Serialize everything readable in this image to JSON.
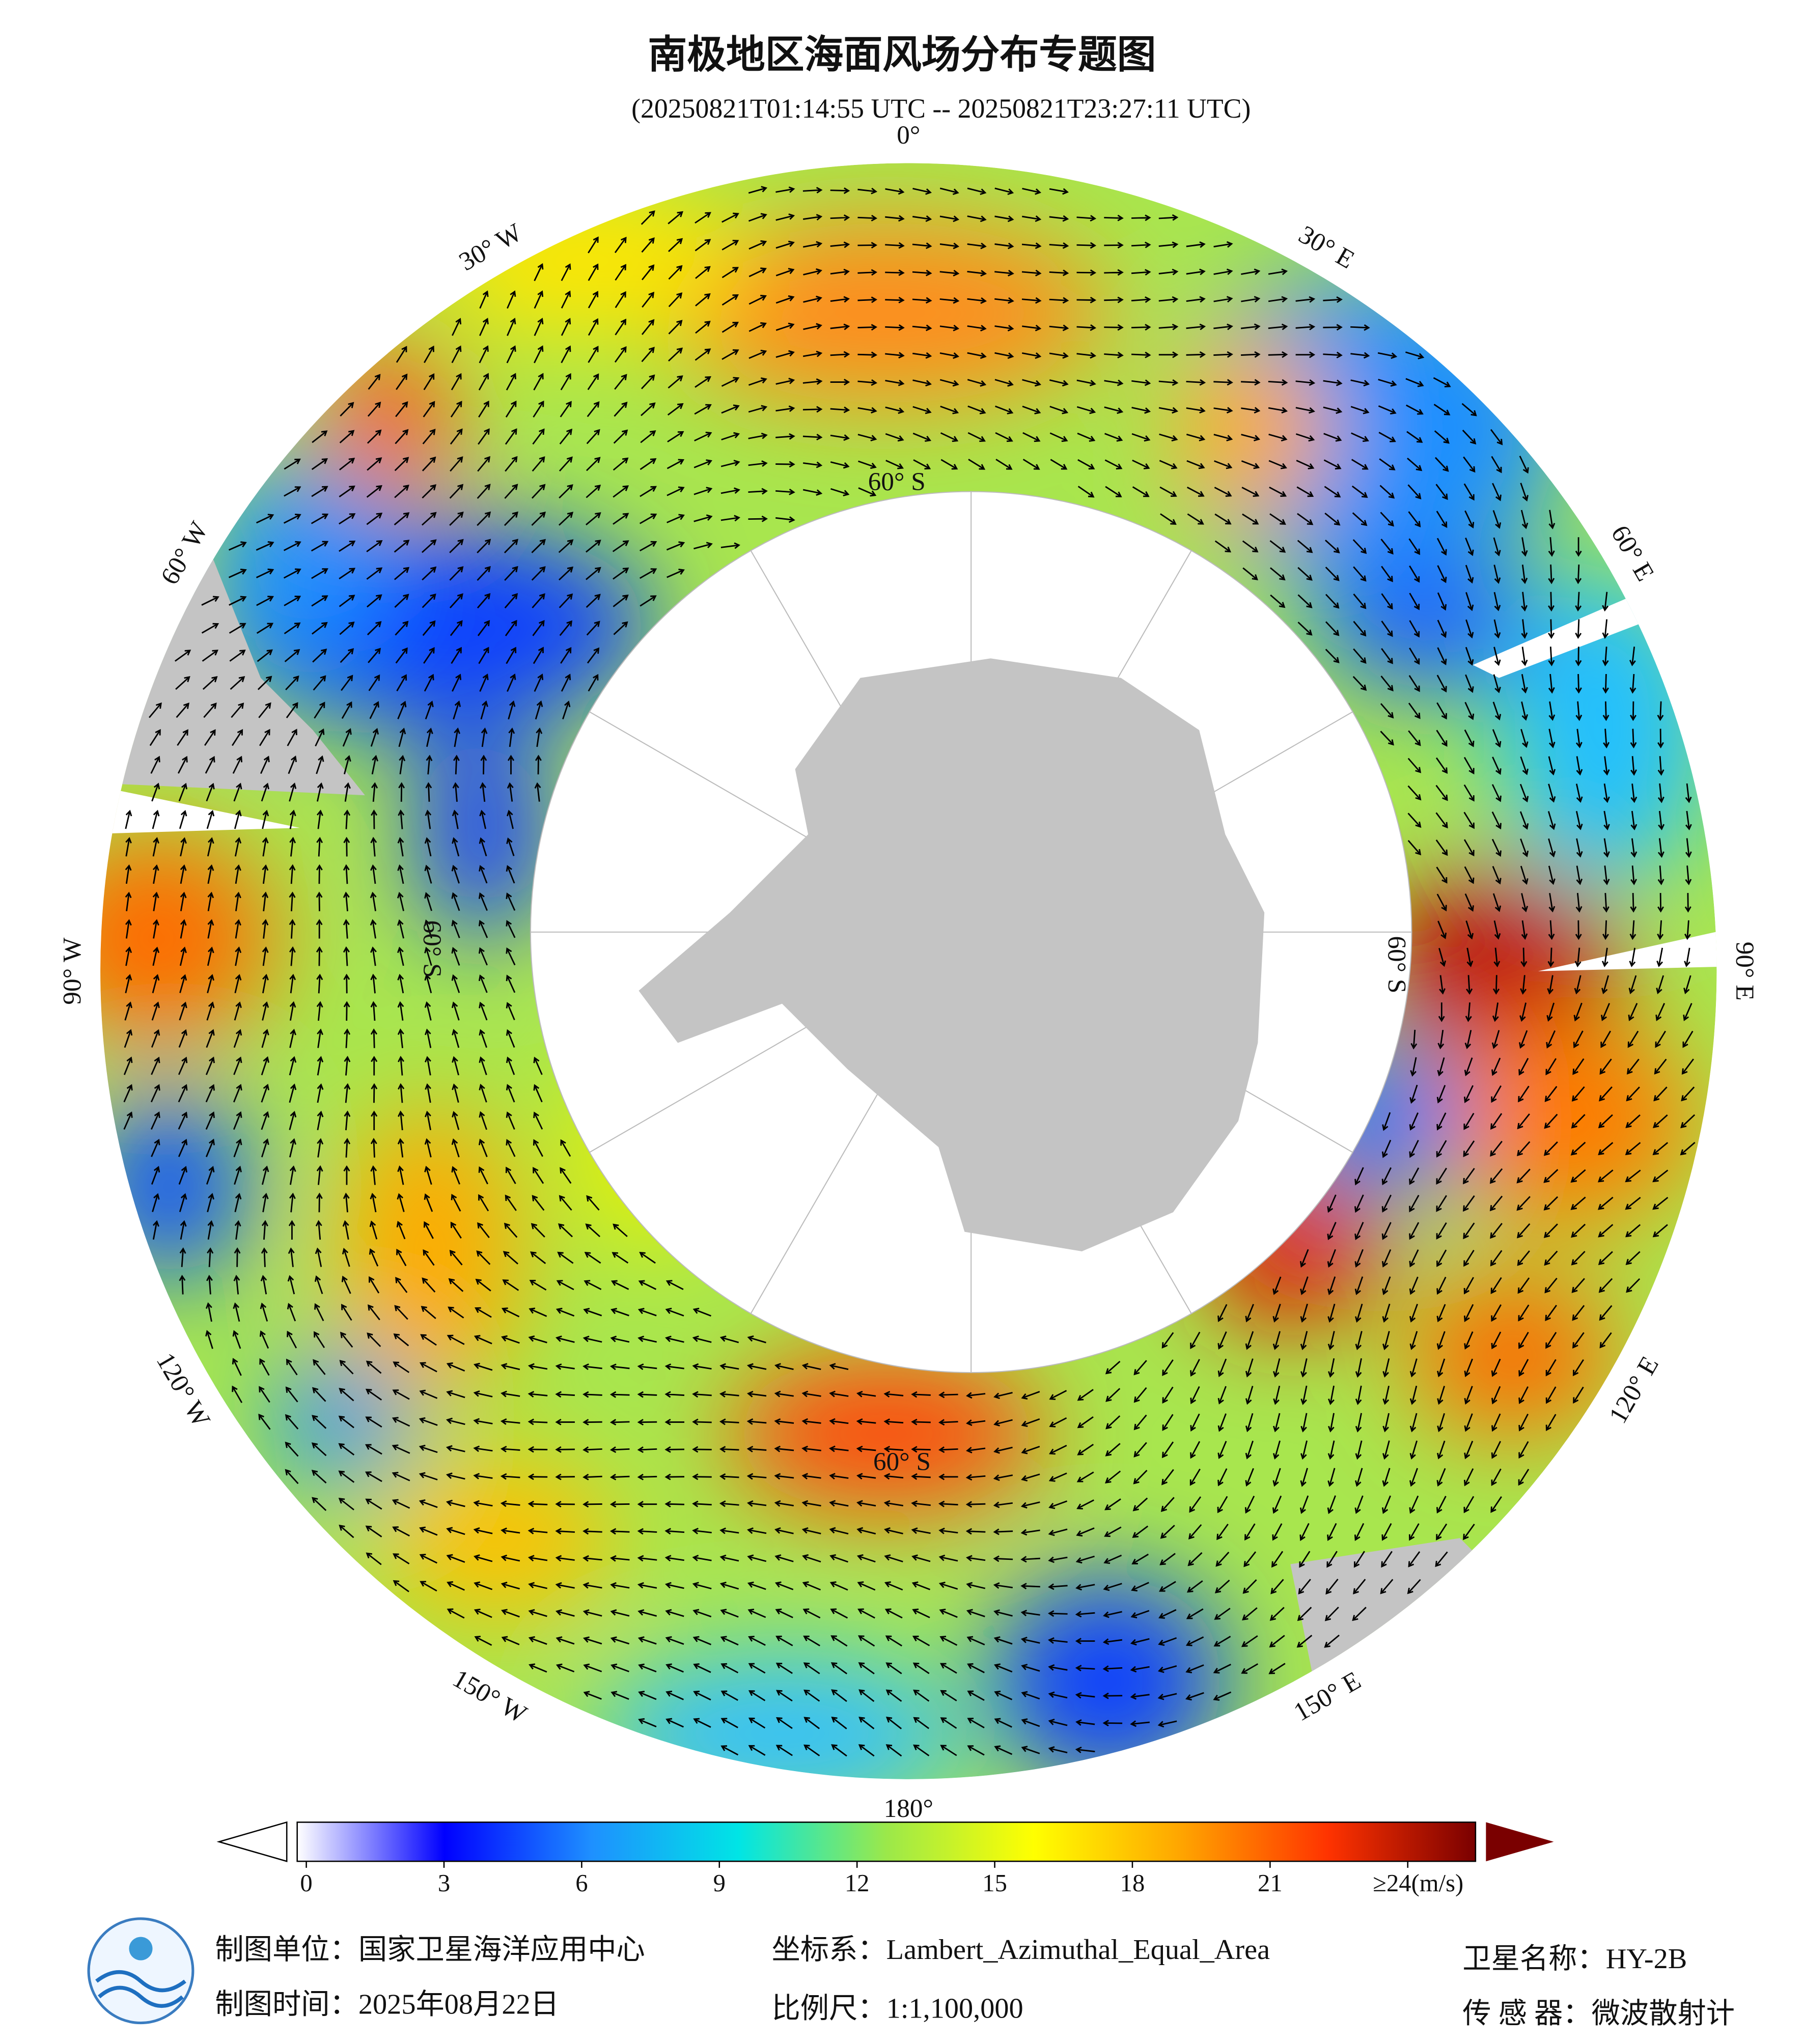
{
  "header": {
    "title": "南极地区海面风场分布专题图",
    "subtitle": "(20250821T01:14:55 UTC -- 20250821T23:27:11 UTC)"
  },
  "map": {
    "lon_labels": [
      "0°",
      "30° E",
      "60° E",
      "90° E",
      "120° E",
      "150° E",
      "180°",
      "150° W",
      "120° W",
      "90° W",
      "60° W",
      "30° W"
    ],
    "lat_labels": [
      "60° S",
      "60° S",
      "60° S",
      "60° S"
    ]
  },
  "colorbar": {
    "ticks": [
      0,
      3,
      6,
      9,
      12,
      15,
      18,
      21,
      {
        "value": 24,
        "label": "≥24(m/s)"
      }
    ],
    "colors": [
      "#ffffff",
      "#0000ff",
      "#1e90ff",
      "#00e5e5",
      "#9be84a",
      "#ffff00",
      "#ffa500",
      "#ff3300",
      "#7a0000"
    ]
  },
  "footer": [
    "制图单位：国家卫星海洋应用中心",
    "坐标系：Lambert_Azimuthal_Equal_Area",
    "卫星名称：HY-2B",
    "制图时间：2025年08月22日",
    "比例尺：1:1,100,000",
    "传 感 器：微波散射计"
  ]
}
